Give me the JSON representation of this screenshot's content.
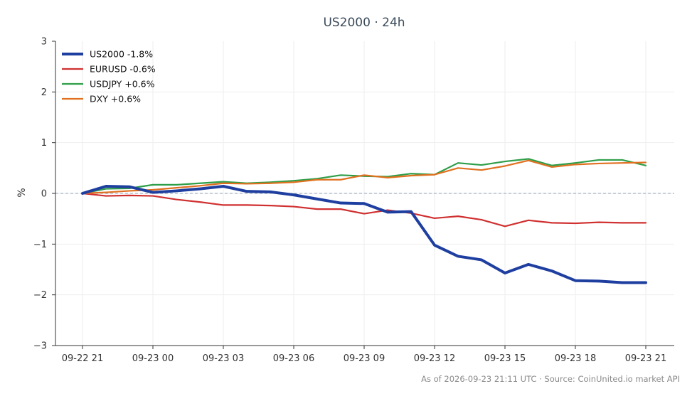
{
  "chart_data": {
    "type": "line",
    "title": "US2000 · 24h",
    "ylabel": "%",
    "xlabel": "",
    "ylim": [
      -3,
      3
    ],
    "yticks": [
      3,
      2,
      1,
      0,
      -1,
      -2,
      -3
    ],
    "ytick_labels": [
      "3",
      "2",
      "1",
      "0",
      "−1",
      "−2",
      "−3"
    ],
    "x": [
      0,
      1,
      2,
      3,
      4,
      5,
      6,
      7,
      8,
      9,
      10,
      11,
      12,
      13,
      14,
      15,
      16,
      17,
      18,
      19,
      20,
      21,
      22,
      23,
      24
    ],
    "xticks": [
      0,
      3,
      6,
      9,
      12,
      15,
      18,
      21,
      24
    ],
    "xtick_labels": [
      "09-22 21",
      "09-23 00",
      "09-23 03",
      "09-23 06",
      "09-23 09",
      "09-23 12",
      "09-23 15",
      "09-23 18",
      "09-23 21"
    ],
    "grid": true,
    "zero_line": true,
    "legend_position": "top-left",
    "series": [
      {
        "name": "US2000 -1.8%",
        "color": "#1f3fa0",
        "width": 4,
        "values": [
          0.0,
          0.14,
          0.13,
          0.02,
          0.05,
          0.09,
          0.14,
          0.04,
          0.03,
          -0.03,
          -0.11,
          -0.19,
          -0.2,
          -0.37,
          -0.36,
          -1.02,
          -1.24,
          -1.31,
          -1.57,
          -1.4,
          -1.53,
          -1.72,
          -1.73,
          -1.76,
          -1.76
        ]
      },
      {
        "name": "EURUSD -0.6%",
        "color": "#d03030",
        "width": 2.2,
        "values": [
          0.0,
          -0.05,
          -0.04,
          -0.05,
          -0.12,
          -0.17,
          -0.23,
          -0.23,
          -0.24,
          -0.26,
          -0.31,
          -0.31,
          -0.4,
          -0.33,
          -0.39,
          -0.49,
          -0.45,
          -0.52,
          -0.65,
          -0.53,
          -0.58,
          -0.59,
          -0.57,
          -0.58,
          -0.58
        ]
      },
      {
        "name": "USDJPY +0.6%",
        "color": "#2e9e48",
        "width": 2.2,
        "values": [
          0.0,
          0.09,
          0.1,
          0.17,
          0.17,
          0.2,
          0.23,
          0.2,
          0.22,
          0.25,
          0.29,
          0.36,
          0.34,
          0.33,
          0.39,
          0.37,
          0.6,
          0.56,
          0.63,
          0.68,
          0.55,
          0.6,
          0.66,
          0.66,
          0.55
        ]
      },
      {
        "name": "DXY +0.6%",
        "color": "#e07020",
        "width": 2.2,
        "values": [
          0.0,
          0.02,
          0.05,
          0.07,
          0.11,
          0.15,
          0.2,
          0.19,
          0.2,
          0.22,
          0.27,
          0.27,
          0.36,
          0.31,
          0.35,
          0.37,
          0.5,
          0.46,
          0.54,
          0.65,
          0.52,
          0.57,
          0.59,
          0.6,
          0.61
        ]
      }
    ]
  },
  "footer": "As of 2026-09-23 21:11 UTC · Source: CoinUnited.io market API"
}
